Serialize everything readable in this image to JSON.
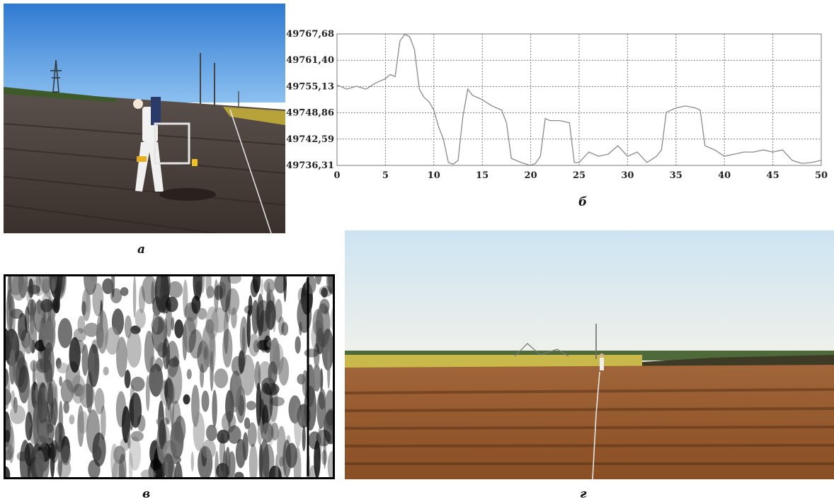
{
  "captions": {
    "a": "а",
    "b": "б",
    "v": "в",
    "g": "г"
  },
  "colors": {
    "plot_line": "#8a8a8a",
    "grid": "#7a7a7a",
    "sky": "#3d86d8",
    "soil": "#4a3f3a",
    "field_soil": "#9a5a2c"
  },
  "chart_data": {
    "type": "line",
    "title": "",
    "xlabel": "",
    "ylabel": "",
    "xlim": [
      0,
      50
    ],
    "ylim": [
      49736.31,
      49767.68
    ],
    "x_ticks": [
      "0",
      "5",
      "10",
      "15",
      "20",
      "25",
      "30",
      "35",
      "40",
      "45",
      "50"
    ],
    "y_ticks": [
      "49736,31",
      "49742,59",
      "49748,86",
      "49755,13",
      "49761,40",
      "49767,68"
    ],
    "grid": true,
    "series": [
      {
        "x": [
          0,
          1,
          2,
          3,
          4,
          5,
          5.5,
          6,
          6.5,
          7,
          7.5,
          8,
          8.5,
          9,
          9.5,
          10,
          10.5,
          11,
          11.5,
          12,
          12.5,
          13,
          13.5,
          14,
          15,
          16,
          17,
          17.5,
          18,
          19,
          20,
          20.5,
          21,
          21.5,
          22,
          23,
          24,
          24.5,
          25,
          26,
          27,
          28,
          29,
          30,
          31,
          32,
          33,
          33.5,
          34,
          35,
          36,
          37,
          37.5,
          38,
          39,
          40,
          41,
          42,
          43,
          44,
          45,
          46,
          47,
          48,
          49,
          50
        ],
        "values": [
          49755.5,
          49754.5,
          49755.2,
          49754.5,
          49756.0,
          49757.0,
          49758.0,
          49757.5,
          49766.0,
          49767.6,
          49767.0,
          49764.0,
          49754.5,
          49752.5,
          49751.5,
          49749.5,
          49745.5,
          49742.5,
          49737.0,
          49736.6,
          49737.5,
          49748.0,
          49754.5,
          49753.0,
          49752.0,
          49750.5,
          49749.5,
          49746.5,
          49738.0,
          49737.0,
          49736.3,
          49736.8,
          49738.5,
          49747.5,
          49747.0,
          49747.0,
          49746.5,
          49737.0,
          49737.0,
          49739.5,
          49738.5,
          49739.0,
          49741.0,
          49738.5,
          49739.5,
          49737.0,
          49738.5,
          49740.0,
          49749.0,
          49750.0,
          49750.5,
          49750.0,
          49749.5,
          49741.0,
          49740.0,
          49738.5,
          49739.0,
          49739.5,
          49739.5,
          49740.0,
          49739.5,
          49740.0,
          49737.5,
          49736.8,
          49737.0,
          49737.5
        ]
      }
    ]
  }
}
